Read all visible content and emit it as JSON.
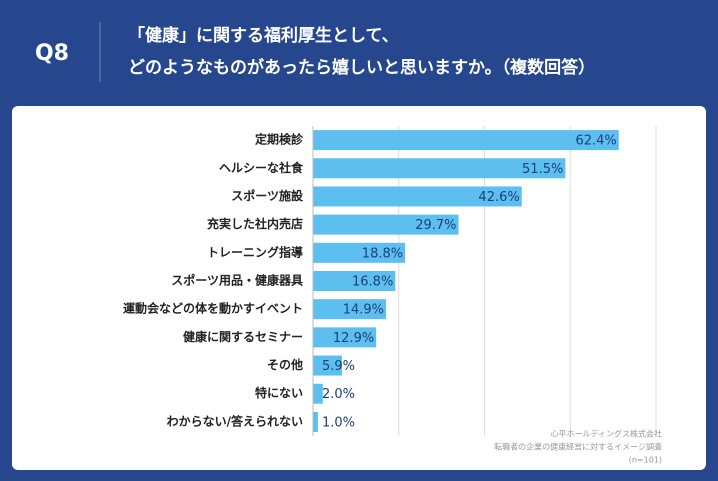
{
  "header": {
    "label": "Q8",
    "question": [
      "「健康」に関する福利厚生として、",
      "どのようなものがあったら嬉しいと思いますか。（複数回答）"
    ]
  },
  "chart_data": {
    "type": "bar",
    "orientation": "horizontal",
    "categories": [
      "定期検診",
      "ヘルシーな社食",
      "スポーツ施設",
      "充実した社内売店",
      "トレーニング指導",
      "スポーツ用品・健康器具",
      "運動会などの体を動かすイベント",
      "健康に関するセミナー",
      "その他",
      "特にない",
      "わからない/答えられない"
    ],
    "values": [
      62.4,
      51.5,
      42.6,
      29.7,
      18.8,
      16.8,
      14.9,
      12.9,
      5.9,
      2.0,
      1.0
    ],
    "value_labels": [
      "62.4%",
      "51.5%",
      "42.6%",
      "29.7%",
      "18.8%",
      "16.8%",
      "14.9%",
      "12.9%",
      "5.9%",
      "2.0%",
      "1.0%"
    ],
    "color": "#5cbff0",
    "xlim": [
      0,
      80
    ],
    "xticks": [
      17.5,
      35,
      52.5,
      70
    ],
    "grid": true
  },
  "source": [
    "心平ホールディングス株式会社",
    "転職者の企業の健康経営に対するイメージ調査",
    "(n=101)"
  ]
}
